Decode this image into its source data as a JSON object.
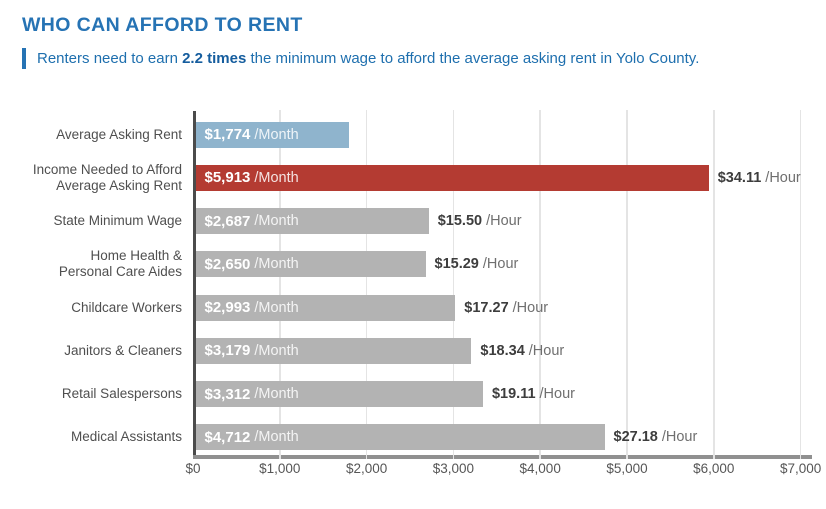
{
  "header": {
    "title": "WHO CAN AFFORD TO RENT",
    "subtitle_prefix": "Renters need to earn ",
    "subtitle_bold": "2.2 times",
    "subtitle_suffix": " the minimum wage to afford the average asking rent in Yolo County."
  },
  "chart_data": {
    "type": "bar",
    "orientation": "horizontal",
    "title": "WHO CAN AFFORD TO RENT",
    "xlabel": "",
    "ylabel": "",
    "xlim": [
      0,
      7000
    ],
    "x_ticks": [
      "$0",
      "$1,000",
      "$2,000",
      "$3,000",
      "$4,000",
      "$5,000",
      "$6,000",
      "$7,000"
    ],
    "grid": "vertical",
    "legend": "none",
    "rows": [
      {
        "category": "Average Asking Rent",
        "category_lines": [
          "Average Asking Rent"
        ],
        "value_month": 1774,
        "month_label": "$1,774",
        "month_unit": "/Month",
        "hour_label": "",
        "hour_unit": "",
        "color": "#8fb4cd"
      },
      {
        "category": "Income Needed to Afford Average Asking Rent",
        "category_lines": [
          "Income Needed to Afford",
          "Average Asking Rent"
        ],
        "value_month": 5913,
        "month_label": "$5,913",
        "month_unit": "/Month",
        "hour_label": "$34.11",
        "hour_unit": "/Hour",
        "color": "#b43b32"
      },
      {
        "category": "State Minimum Wage",
        "category_lines": [
          "State Minimum Wage"
        ],
        "value_month": 2687,
        "month_label": "$2,687",
        "month_unit": "/Month",
        "hour_label": "$15.50",
        "hour_unit": "/Hour",
        "color": "#b3b3b3"
      },
      {
        "category": "Home Health & Personal Care Aides",
        "category_lines": [
          "Home Health &",
          "Personal Care Aides"
        ],
        "value_month": 2650,
        "month_label": "$2,650",
        "month_unit": "/Month",
        "hour_label": "$15.29",
        "hour_unit": "/Hour",
        "color": "#b3b3b3"
      },
      {
        "category": "Childcare Workers",
        "category_lines": [
          "Childcare Workers"
        ],
        "value_month": 2993,
        "month_label": "$2,993",
        "month_unit": "/Month",
        "hour_label": "$17.27",
        "hour_unit": "/Hour",
        "color": "#b3b3b3"
      },
      {
        "category": "Janitors & Cleaners",
        "category_lines": [
          "Janitors & Cleaners"
        ],
        "value_month": 3179,
        "month_label": "$3,179",
        "month_unit": "/Month",
        "hour_label": "$18.34",
        "hour_unit": "/Hour",
        "color": "#b3b3b3"
      },
      {
        "category": "Retail Salespersons",
        "category_lines": [
          "Retail Salespersons"
        ],
        "value_month": 3312,
        "month_label": "$3,312",
        "month_unit": "/Month",
        "hour_label": "$19.11",
        "hour_unit": "/Hour",
        "color": "#b3b3b3"
      },
      {
        "category": "Medical Assistants",
        "category_lines": [
          "Medical Assistants"
        ],
        "value_month": 4712,
        "month_label": "$4,712",
        "month_unit": "/Month",
        "hour_label": "$27.18",
        "hour_unit": "/Hour",
        "color": "#b3b3b3"
      }
    ],
    "colors": {
      "accent_blue": "#8fb4cd",
      "accent_red": "#b43b32",
      "bar_gray": "#b3b3b3",
      "title_blue": "#2673b4",
      "subtitle_blue": "#1e6fae"
    }
  }
}
